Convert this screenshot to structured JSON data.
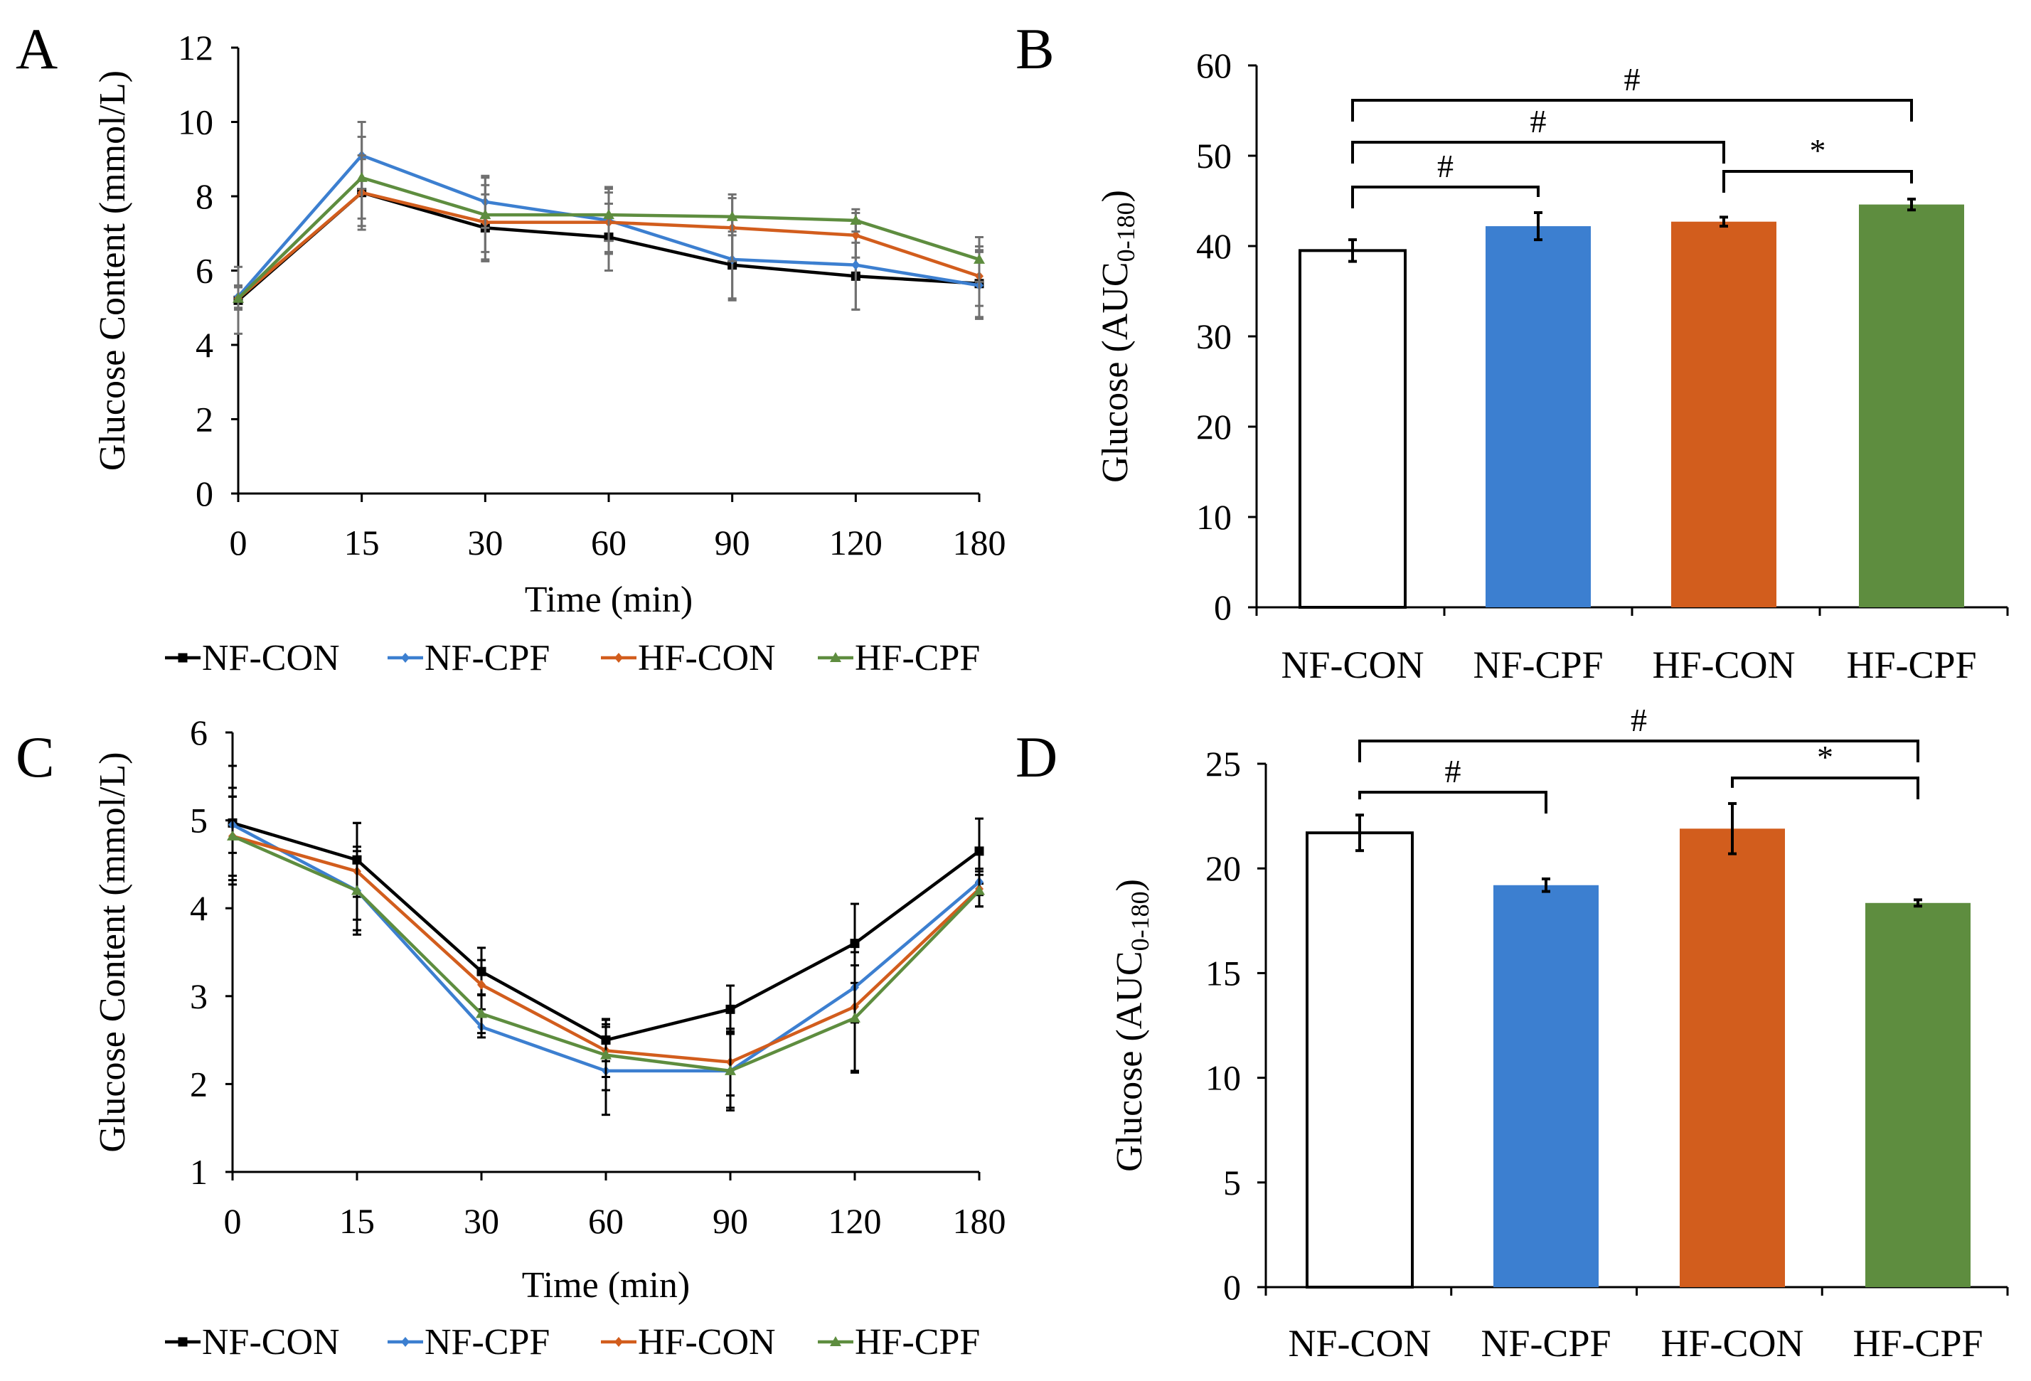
{
  "colors": {
    "NF-CON": "#000000",
    "NF-CPF": "#3c7fd0",
    "HF-CON": "#d25d1d",
    "HF-CPF": "#5e8d3f",
    "errorbar_gray": "#707070"
  },
  "chart_data": [
    {
      "panel": "A",
      "type": "line",
      "title": "",
      "xlabel": "Time (min)",
      "ylabel": "Glucose Content (mmol/L)",
      "categories": [
        "0",
        "15",
        "30",
        "60",
        "90",
        "120",
        "180"
      ],
      "ylim": [
        0,
        12
      ],
      "yticks": [
        "0",
        "2",
        "4",
        "6",
        "8",
        "10",
        "12"
      ],
      "legend": [
        "NF-CON",
        "NF-CPF",
        "HF-CON",
        "HF-CPF"
      ],
      "legend_position": "bottom",
      "series": [
        {
          "name": "NF-CON",
          "values": [
            5.2,
            8.1,
            7.15,
            6.9,
            6.15,
            5.85,
            5.65
          ],
          "errors": [
            0.9,
            0.9,
            0.9,
            0.9,
            0.9,
            0.9,
            0.9
          ]
        },
        {
          "name": "NF-CPF",
          "values": [
            5.3,
            9.1,
            7.85,
            7.35,
            6.3,
            6.15,
            5.6
          ],
          "errors": [
            0.3,
            0.9,
            0.7,
            0.9,
            1.1,
            1.2,
            0.9
          ]
        },
        {
          "name": "HF-CON",
          "values": [
            5.25,
            8.1,
            7.3,
            7.3,
            7.15,
            6.95,
            5.85
          ],
          "errors": [
            0.3,
            1.0,
            1.0,
            0.8,
            0.9,
            0.6,
            0.8
          ]
        },
        {
          "name": "HF-CPF",
          "values": [
            5.25,
            8.5,
            7.5,
            7.5,
            7.45,
            7.35,
            6.3
          ],
          "errors": [
            0.3,
            1.1,
            1.0,
            0.7,
            0.5,
            0.3,
            0.6
          ]
        }
      ]
    },
    {
      "panel": "B",
      "type": "bar",
      "title": "",
      "xlabel": "",
      "ylabel": "Glucose (AUC0-180)",
      "ylabel_main": "Glucose",
      "ylabel_sub": "0-180",
      "categories": [
        "NF-CON",
        "NF-CPF",
        "HF-CON",
        "HF-CPF"
      ],
      "values": [
        39.5,
        42.2,
        42.7,
        44.6
      ],
      "errors": [
        1.2,
        1.5,
        0.5,
        0.6
      ],
      "ylim": [
        0,
        60
      ],
      "yticks": [
        "0",
        "10",
        "20",
        "30",
        "40",
        "50",
        "60"
      ],
      "significance": [
        {
          "from": 0,
          "to": 1,
          "label": "#",
          "level": 1
        },
        {
          "from": 0,
          "to": 2,
          "label": "#",
          "level": 2
        },
        {
          "from": 0,
          "to": 3,
          "label": "#",
          "level": 3
        },
        {
          "from": 2,
          "to": 3,
          "label": "*",
          "level": 1
        }
      ]
    },
    {
      "panel": "C",
      "type": "line",
      "title": "",
      "xlabel": "Time (min)",
      "ylabel": "Glucose Content (mmol/L)",
      "categories": [
        "0",
        "15",
        "30",
        "60",
        "90",
        "120",
        "180"
      ],
      "ylim": [
        1,
        6
      ],
      "yticks": [
        "1",
        "2",
        "3",
        "4",
        "5",
        "6"
      ],
      "legend": [
        "NF-CON",
        "NF-CPF",
        "HF-CON",
        "HF-CPF"
      ],
      "legend_position": "bottom",
      "series": [
        {
          "name": "NF-CON",
          "values": [
            4.97,
            4.55,
            3.28,
            2.5,
            2.85,
            3.6,
            4.65
          ],
          "errors": [
            0.65,
            0.42,
            0.27,
            0.24,
            0.27,
            0.45,
            0.37
          ]
        },
        {
          "name": "NF-CPF",
          "values": [
            4.95,
            4.2,
            2.65,
            2.15,
            2.15,
            3.1,
            4.3
          ],
          "errors": [
            0.32,
            0.45,
            0.12,
            0.5,
            0.42,
            0.4,
            0.15
          ]
        },
        {
          "name": "HF-CON",
          "values": [
            4.82,
            4.42,
            3.13,
            2.38,
            2.25,
            2.88,
            4.22
          ],
          "errors": [
            0.55,
            0.55,
            0.28,
            0.3,
            0.38,
            0.75,
            0.2
          ]
        },
        {
          "name": "HF-CPF",
          "values": [
            4.82,
            4.2,
            2.8,
            2.33,
            2.15,
            2.75,
            4.2
          ],
          "errors": [
            0.45,
            0.5,
            0.22,
            0.4,
            0.45,
            0.6,
            0.18
          ]
        }
      ]
    },
    {
      "panel": "D",
      "type": "bar",
      "title": "",
      "xlabel": "",
      "ylabel": "Glucose (AUC0-180)",
      "ylabel_main": "Glucose",
      "ylabel_sub": "0-180",
      "categories": [
        "NF-CON",
        "NF-CPF",
        "HF-CON",
        "HF-CPF"
      ],
      "values": [
        21.7,
        19.2,
        21.9,
        18.35
      ],
      "errors": [
        0.85,
        0.3,
        1.2,
        0.15
      ],
      "ylim": [
        0,
        25
      ],
      "yticks": [
        "0",
        "5",
        "10",
        "15",
        "20",
        "25"
      ],
      "significance": [
        {
          "from": 0,
          "to": 1,
          "label": "#",
          "level": 1
        },
        {
          "from": 0,
          "to": 3,
          "label": "#",
          "level": 2
        },
        {
          "from": 2,
          "to": 3,
          "label": "*",
          "level": 1
        }
      ]
    }
  ]
}
